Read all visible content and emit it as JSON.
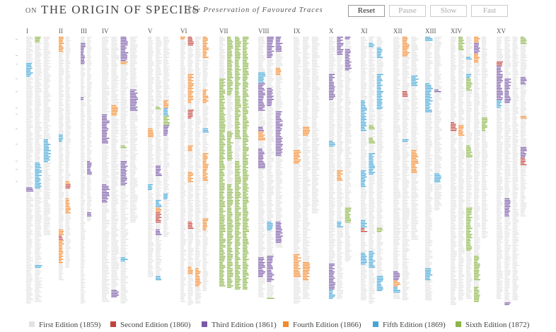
{
  "header": {
    "prefix": "ON",
    "title": "THE ORIGIN OF SPECIES",
    "subtitle": "The Preservation of Favoured Traces"
  },
  "buttons": [
    "Reset",
    "Pause",
    "Slow",
    "Fast"
  ],
  "chapters": [
    "I",
    "II",
    "III",
    "IV",
    "V",
    "VI",
    "VII",
    "VIII",
    "IX",
    "X",
    "XI",
    "XII",
    "XIII",
    "XIV",
    "XV"
  ],
  "legend": [
    {
      "name": "First Edition (1859)",
      "color": "#e2e2e2"
    },
    {
      "name": "Second Edition (1860)",
      "color": "#c0433d"
    },
    {
      "name": "Third Edition (1861)",
      "color": "#7a5aa6"
    },
    {
      "name": "Fourth Edition (1866)",
      "color": "#f28a30"
    },
    {
      "name": "Fifth Edition (1869)",
      "color": "#45a6d6"
    },
    {
      "name": "Sixth Edition (1872)",
      "color": "#8bb548"
    }
  ]
}
